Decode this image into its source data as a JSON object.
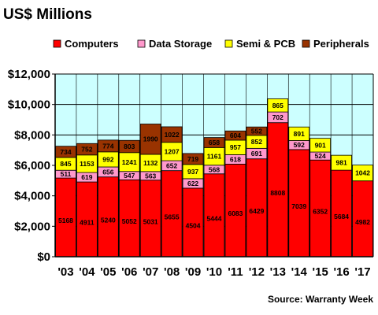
{
  "chart_data": {
    "type": "bar",
    "stacked": true,
    "title": "US$ Millions",
    "source": "Source: Warranty Week",
    "categories": [
      "'03",
      "'04",
      "'05",
      "'06",
      "'07",
      "'08",
      "'09",
      "'10",
      "'11",
      "'12",
      "'13",
      "'14",
      "'15",
      "'16",
      "'17"
    ],
    "series": [
      {
        "name": "Computers",
        "color": "#ff0000",
        "values": [
          5168,
          4911,
          5240,
          5052,
          5031,
          5655,
          4504,
          5444,
          6083,
          6429,
          8808,
          7039,
          6352,
          5684,
          4982
        ]
      },
      {
        "name": "Data Storage",
        "color": "#ff99cc",
        "values": [
          511,
          619,
          656,
          547,
          563,
          652,
          622,
          568,
          618,
          691,
          702,
          592,
          524,
          null,
          null
        ]
      },
      {
        "name": "Semi & PCB",
        "color": "#ffff00",
        "values": [
          845,
          1153,
          992,
          1241,
          1132,
          1207,
          937,
          1161,
          957,
          852,
          865,
          891,
          901,
          981,
          1042
        ]
      },
      {
        "name": "Peripherals",
        "color": "#993300",
        "values": [
          734,
          752,
          774,
          803,
          1990,
          1022,
          719,
          658,
          604,
          552,
          null,
          null,
          null,
          null,
          null
        ]
      }
    ],
    "ylim": [
      0,
      12000
    ],
    "yticks": [
      "$0",
      "$2,000",
      "$4,000",
      "$6,000",
      "$8,000",
      "$10,000",
      "$12,000"
    ],
    "ytick_values": [
      0,
      2000,
      4000,
      6000,
      8000,
      10000,
      12000
    ],
    "grid": true,
    "legend_position": "top"
  }
}
